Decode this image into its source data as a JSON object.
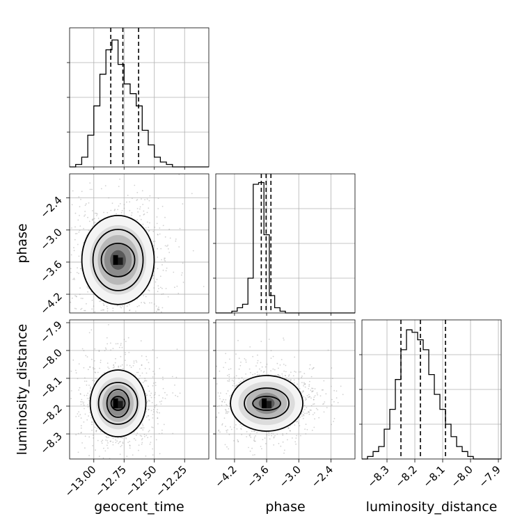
{
  "chart_data": {
    "type": "corner",
    "parameters": [
      "geocent_time",
      "phase",
      "luminosity_distance"
    ],
    "axis_labels": {
      "geocent_time": "geocent_time",
      "phase": "phase",
      "luminosity_distance": "luminosity_distance"
    },
    "ranges": {
      "geocent_time": [
        -13.2,
        -12.05
      ],
      "phase": [
        -4.55,
        -1.95
      ],
      "luminosity_distance": [
        -8.39,
        -7.89
      ]
    },
    "ticks": {
      "geocent_time": {
        "values": [
          -13.0,
          -12.75,
          -12.5,
          -12.25
        ],
        "labels": [
          "−13.00",
          "−12.75",
          "−12.50",
          "−12.25"
        ]
      },
      "phase": {
        "values": [
          -4.2,
          -3.6,
          -3.0,
          -2.4
        ],
        "labels": [
          "−4.2",
          "−3.6",
          "−3.0",
          "−2.4"
        ]
      },
      "luminosity_distance": {
        "values": [
          -8.3,
          -8.2,
          -8.1,
          -8.0,
          -7.9
        ],
        "labels": [
          "−8.3",
          "−8.2",
          "−8.1",
          "−8.0",
          "−7.9"
        ]
      }
    },
    "quantiles": {
      "geocent_time": [
        -12.86,
        -12.76,
        -12.63
      ],
      "phase": [
        -3.7,
        -3.61,
        -3.52
      ],
      "luminosity_distance": [
        -8.25,
        -8.18,
        -8.09
      ]
    },
    "histograms": {
      "geocent_time": {
        "bin_edges": [
          -13.2,
          -13.15,
          -13.1,
          -13.05,
          -13.0,
          -12.95,
          -12.9,
          -12.85,
          -12.8,
          -12.75,
          -12.7,
          -12.65,
          -12.6,
          -12.55,
          -12.5,
          -12.45,
          -12.4,
          -12.35,
          -12.3,
          -12.25,
          -12.2,
          -12.15,
          -12.1,
          -12.05
        ],
        "counts": [
          0,
          1,
          4,
          13,
          25,
          38,
          48,
          52,
          42,
          34,
          30,
          25,
          15,
          9,
          4,
          2,
          1,
          0,
          0,
          0,
          0,
          0,
          0
        ],
        "ylim": [
          0,
          57
        ]
      },
      "phase": {
        "bin_edges": [
          -4.55,
          -4.45,
          -4.35,
          -4.25,
          -4.15,
          -4.05,
          -3.95,
          -3.85,
          -3.75,
          -3.65,
          -3.55,
          -3.45,
          -3.35,
          -3.25,
          -3.15,
          -3.05,
          -2.95,
          -2.85,
          -2.75,
          -2.65,
          -2.55,
          -2.45,
          -2.35,
          -2.25,
          -2.15,
          -2.05,
          -1.95
        ],
        "counts": [
          0,
          0,
          0,
          1,
          3,
          5,
          20,
          74,
          75,
          45,
          10,
          3,
          1,
          0,
          0,
          0,
          0,
          0,
          0,
          0,
          0,
          0,
          0,
          0,
          0,
          0
        ],
        "ylim": [
          0,
          80
        ]
      },
      "luminosity_distance": {
        "bin_edges": [
          -8.39,
          -8.37,
          -8.35,
          -8.33,
          -8.31,
          -8.29,
          -8.27,
          -8.25,
          -8.23,
          -8.21,
          -8.19,
          -8.17,
          -8.15,
          -8.13,
          -8.11,
          -8.09,
          -8.07,
          -8.05,
          -8.03,
          -8.01,
          -7.99,
          -7.97,
          -7.95,
          -7.93,
          -7.91,
          -7.89
        ],
        "counts": [
          0,
          1,
          3,
          5,
          12,
          20,
          32,
          44,
          52,
          51,
          48,
          44,
          34,
          26,
          20,
          14,
          9,
          5,
          3,
          1,
          0,
          0,
          0,
          0,
          0
        ],
        "ylim": [
          0,
          56
        ]
      }
    },
    "pairs": [
      {
        "x": "geocent_time",
        "y": "phase",
        "peak": [
          -12.8,
          -3.56
        ],
        "contours": [
          [
            0.12,
            0.12
          ],
          [
            0.18,
            0.22
          ],
          [
            0.26,
            0.32
          ]
        ]
      },
      {
        "x": "geocent_time",
        "y": "luminosity_distance",
        "peak": [
          -12.8,
          -8.19
        ],
        "contours": [
          [
            0.05,
            0.05
          ],
          [
            0.08,
            0.1
          ],
          [
            0.14,
            0.15
          ],
          [
            0.2,
            0.24
          ]
        ]
      },
      {
        "x": "phase",
        "y": "luminosity_distance",
        "peak": [
          -3.6,
          -8.19
        ],
        "contours": [
          [
            0.1,
            0.05
          ],
          [
            0.16,
            0.11
          ],
          [
            0.26,
            0.2
          ]
        ]
      }
    ],
    "grid": true
  }
}
